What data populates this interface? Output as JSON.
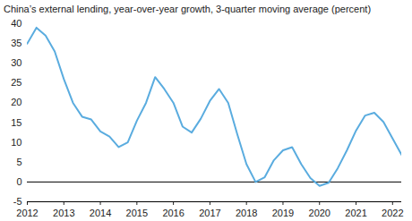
{
  "chart_data": {
    "type": "line",
    "title": "China’s external lending, year-over-year growth, 3-quarter moving average (percent)",
    "x": [
      2012,
      2012.25,
      2012.5,
      2012.75,
      2013,
      2013.25,
      2013.5,
      2013.75,
      2014,
      2014.25,
      2014.5,
      2014.75,
      2015,
      2015.25,
      2015.5,
      2015.75,
      2016,
      2016.25,
      2016.5,
      2016.75,
      2017,
      2017.25,
      2017.5,
      2017.75,
      2018,
      2018.25,
      2018.5,
      2018.75,
      2019,
      2019.25,
      2019.5,
      2019.75,
      2020,
      2020.25,
      2020.5,
      2020.75,
      2021,
      2021.25,
      2021.5,
      2021.75,
      2022,
      2022.25
    ],
    "values": [
      35,
      39,
      37,
      33,
      26,
      20,
      16.5,
      15.8,
      12.8,
      11.5,
      8.8,
      10,
      15.5,
      20,
      26.5,
      23.5,
      20,
      14,
      12.5,
      16,
      20.5,
      23.5,
      20,
      12,
      4.5,
      0,
      1.2,
      5.5,
      8,
      8.8,
      4.5,
      1,
      -1,
      -0.2,
      3.5,
      8,
      13,
      16.8,
      17.5,
      15.2,
      11,
      6.8
    ],
    "color": "#5aacdf",
    "xlim": [
      2012,
      2022.25
    ],
    "xticks": [
      2012,
      2013,
      2014,
      2015,
      2016,
      2017,
      2018,
      2019,
      2020,
      2021,
      2022
    ],
    "ylim": [
      -5,
      40
    ],
    "yticks": [
      -5,
      0,
      5,
      10,
      15,
      20,
      25,
      30,
      35,
      40
    ],
    "grid": false
  }
}
